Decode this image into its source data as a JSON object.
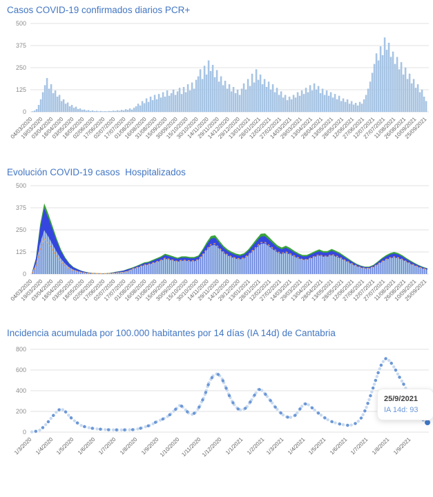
{
  "chart_data": [
    {
      "type": "bar",
      "title": "Casos COVID-19 confirmados diarios PCR+",
      "ylabel": "",
      "xlabel": "",
      "ylim": [
        0,
        500
      ],
      "yticks": [
        0,
        125,
        250,
        375,
        500
      ],
      "grid": true,
      "bar_color": "#a9c6e5",
      "bar_edge_color": "#8fb2d9",
      "x_tick_labels": [
        "04/03/2020",
        "19/03/2020",
        "03/04/2020",
        "18/04/2020",
        "03/05/2020",
        "18/05/2020",
        "02/06/2020",
        "17/06/2020",
        "02/07/2020",
        "17/07/2020",
        "01/08/2020",
        "16/08/2020",
        "31/08/2020",
        "15/09/2020",
        "30/09/2020",
        "15/10/2020",
        "30/10/2020",
        "14/11/2020",
        "29/11/2020",
        "14/12/2020",
        "29/12/2020",
        "13/01/2021",
        "28/01/2021",
        "12/02/2021",
        "27/02/2021",
        "14/03/2021",
        "29/03/2021",
        "13/04/2021",
        "28/04/2021",
        "13/05/2021",
        "28/05/2021",
        "12/06/2021",
        "27/06/2021",
        "12/07/2021",
        "27/07/2021",
        "11/08/2021",
        "26/08/2021",
        "10/09/2021",
        "25/09/2021"
      ],
      "values": [
        2,
        6,
        15,
        38,
        70,
        110,
        150,
        190,
        130,
        155,
        105,
        120,
        85,
        95,
        60,
        70,
        45,
        52,
        30,
        38,
        22,
        28,
        15,
        18,
        10,
        12,
        6,
        9,
        4,
        7,
        3,
        5,
        2,
        4,
        2,
        3,
        2,
        4,
        3,
        6,
        4,
        8,
        5,
        10,
        7,
        14,
        10,
        18,
        12,
        22,
        30,
        45,
        35,
        60,
        48,
        75,
        55,
        85,
        65,
        95,
        70,
        100,
        80,
        110,
        85,
        120,
        90,
        105,
        125,
        95,
        115,
        135,
        100,
        140,
        110,
        155,
        120,
        165,
        130,
        180,
        200,
        240,
        185,
        260,
        210,
        290,
        230,
        265,
        195,
        235,
        170,
        200,
        150,
        175,
        130,
        155,
        115,
        140,
        105,
        125,
        95,
        130,
        160,
        125,
        185,
        145,
        215,
        165,
        240,
        180,
        210,
        155,
        185,
        140,
        170,
        125,
        155,
        110,
        135,
        95,
        115,
        80,
        95,
        65,
        85,
        70,
        95,
        80,
        110,
        90,
        120,
        100,
        135,
        110,
        150,
        120,
        160,
        125,
        145,
        105,
        130,
        95,
        120,
        90,
        110,
        80,
        100,
        70,
        90,
        60,
        75,
        55,
        70,
        45,
        60,
        40,
        50,
        35,
        55,
        45,
        70,
        95,
        130,
        170,
        220,
        270,
        330,
        290,
        370,
        320,
        420,
        350,
        390,
        310,
        340,
        270,
        310,
        240,
        280,
        210,
        250,
        185,
        215,
        160,
        185,
        135,
        155,
        110,
        125,
        85,
        60
      ]
    },
    {
      "type": "area",
      "title": "Evolución COVID-19 casos  Hospitalizados",
      "ylabel": "",
      "xlabel": "",
      "ylim": [
        0,
        500
      ],
      "yticks": [
        0,
        125,
        250,
        375,
        500
      ],
      "grid": true,
      "x_tick_labels": [
        "04/03/2020",
        "19/03/2020",
        "03/04/2020",
        "18/04/2020",
        "03/05/2020",
        "18/05/2020",
        "02/06/2020",
        "17/06/2020",
        "02/07/2020",
        "17/07/2020",
        "01/08/2020",
        "16/08/2020",
        "31/08/2020",
        "15/09/2020",
        "30/09/2020",
        "15/10/2020",
        "30/10/2020",
        "14/11/2020",
        "29/11/2020",
        "14/12/2020",
        "29/12/2020",
        "13/01/2021",
        "28/01/2021",
        "12/02/2021",
        "27/02/2021",
        "14/03/2021",
        "29/03/2021",
        "13/04/2021",
        "28/04/2021",
        "13/05/2021",
        "28/05/2021",
        "12/06/2021",
        "27/06/2021",
        "12/07/2021",
        "27/07/2021",
        "11/08/2021",
        "26/08/2021",
        "10/09/2021",
        "25/09/2021"
      ],
      "series": [
        {
          "name": "green_outline",
          "color": "#3aa33a",
          "values": [
            5,
            90,
            280,
            400,
            340,
            270,
            200,
            140,
            95,
            62,
            40,
            28,
            18,
            12,
            8,
            6,
            5,
            4,
            5,
            8,
            12,
            16,
            20,
            28,
            36,
            45,
            55,
            66,
            70,
            80,
            90,
            100,
            115,
            108,
            100,
            92,
            100,
            100,
            96,
            96,
            105,
            140,
            180,
            215,
            220,
            190,
            160,
            140,
            126,
            116,
            110,
            118,
            140,
            170,
            200,
            228,
            230,
            208,
            184,
            162,
            150,
            160,
            148,
            132,
            118,
            108,
            108,
            118,
            130,
            140,
            130,
            130,
            142,
            132,
            120,
            104,
            88,
            72,
            58,
            48,
            42,
            42,
            52,
            70,
            90,
            106,
            118,
            125,
            118,
            106,
            90,
            75,
            62,
            50,
            40,
            33
          ]
        },
        {
          "name": "blue",
          "color": "#3546df",
          "values": [
            3,
            84,
            260,
            372,
            316,
            251,
            186,
            130,
            88,
            58,
            37,
            26,
            17,
            11,
            7,
            5,
            4,
            3,
            4,
            7,
            11,
            15,
            19,
            26,
            33,
            42,
            51,
            61,
            65,
            74,
            84,
            93,
            107,
            100,
            93,
            86,
            93,
            93,
            89,
            89,
            98,
            130,
            167,
            200,
            205,
            177,
            149,
            130,
            117,
            108,
            102,
            110,
            130,
            158,
            186,
            212,
            214,
            193,
            171,
            151,
            140,
            149,
            138,
            123,
            110,
            100,
            100,
            110,
            121,
            130,
            121,
            121,
            132,
            123,
            112,
            97,
            82,
            67,
            54,
            45,
            39,
            39,
            48,
            65,
            84,
            99,
            110,
            116,
            110,
            99,
            84,
            70,
            58,
            47,
            37,
            31
          ]
        },
        {
          "name": "light_blue_base",
          "color": "#a9c6e5",
          "values": [
            3,
            56,
            174,
            248,
            211,
            167,
            124,
            87,
            59,
            38,
            25,
            17,
            11,
            7,
            5,
            4,
            3,
            2,
            3,
            5,
            7,
            10,
            12,
            17,
            27,
            34,
            41,
            50,
            53,
            60,
            68,
            75,
            86,
            81,
            75,
            69,
            75,
            75,
            72,
            72,
            79,
            105,
            135,
            161,
            165,
            143,
            120,
            105,
            95,
            87,
            83,
            89,
            105,
            128,
            150,
            171,
            173,
            156,
            138,
            122,
            113,
            120,
            111,
            99,
            89,
            81,
            81,
            89,
            98,
            105,
            98,
            98,
            107,
            99,
            90,
            78,
            66,
            54,
            44,
            36,
            32,
            32,
            39,
            53,
            68,
            80,
            89,
            94,
            89,
            80,
            68,
            56,
            47,
            38,
            30,
            25
          ]
        },
        {
          "name": "orange_dashed",
          "color": "#f0a24a",
          "values": [
            3,
            45,
            140,
            200,
            170,
            135,
            100,
            70,
            48,
            31,
            20,
            14,
            9,
            6,
            4,
            3,
            3,
            2,
            3,
            4,
            6,
            8,
            10,
            14,
            28,
            35,
            43,
            51,
            55,
            62,
            70,
            78,
            90,
            84,
            78,
            72,
            78,
            78,
            75,
            75,
            82,
            109,
            140,
            168,
            172,
            148,
            125,
            109,
            98,
            90,
            86,
            92,
            109,
            133,
            156,
            178,
            179,
            162,
            144,
            126,
            117,
            125,
            115,
            103,
            93,
            82,
            82,
            92,
            101,
            109,
            101,
            101,
            111,
            103,
            94,
            81,
            69,
            57,
            46,
            37,
            33,
            33,
            41,
            55,
            70,
            83,
            92,
            98,
            92,
            83,
            70,
            59,
            48,
            39,
            31,
            26
          ]
        }
      ]
    },
    {
      "type": "scatter",
      "title": "Incidencia acumulada por 100.000 habitantes por 14 días (IA 14d) de Cantabria",
      "ylabel": "",
      "xlabel": "",
      "ylim": [
        0,
        800
      ],
      "yticks": [
        0,
        200,
        400,
        600,
        800
      ],
      "grid": true,
      "dot_color_light": "#c8daf0",
      "dot_color_dark": "#6b97d6",
      "final_dot_color": "#3a74c8",
      "x_tick_labels": [
        "1/3/2020",
        "1/4/2020",
        "1/5/2020",
        "1/6/2020",
        "1/7/2020",
        "1/8/2020",
        "1/9/2020",
        "1/10/2020",
        "1/11/2020",
        "1/12/2020",
        "1/1/2021",
        "1/2/2021",
        "1/3/2021",
        "1/4/2021",
        "1/5/2021",
        "1/6/2021",
        "1/7/2021",
        "1/8/2021",
        "1/9/2021"
      ],
      "x_tick_days": [
        0,
        31,
        61,
        92,
        122,
        153,
        184,
        214,
        245,
        275,
        306,
        337,
        365,
        396,
        426,
        457,
        487,
        518,
        549
      ],
      "total_days": 573,
      "values": [
        2,
        8,
        20,
        55,
        100,
        150,
        195,
        228,
        205,
        160,
        120,
        90,
        65,
        50,
        42,
        35,
        30,
        27,
        24,
        23,
        22,
        21,
        21,
        22,
        23,
        25,
        33,
        45,
        57,
        70,
        95,
        112,
        130,
        152,
        185,
        225,
        262,
        230,
        185,
        170,
        200,
        270,
        360,
        480,
        545,
        565,
        530,
        440,
        345,
        270,
        225,
        210,
        235,
        290,
        355,
        415,
        400,
        350,
        300,
        245,
        200,
        165,
        145,
        142,
        165,
        220,
        275,
        268,
        235,
        200,
        170,
        140,
        115,
        98,
        85,
        76,
        68,
        65,
        72,
        95,
        140,
        220,
        330,
        450,
        570,
        670,
        715,
        680,
        620,
        545,
        480,
        400,
        320,
        245,
        175,
        115,
        93
      ],
      "tooltip": {
        "date": "25/9/2021",
        "text": "IA 14d: 93",
        "value": 93
      }
    }
  ],
  "theme": {
    "title_color": "#4276c3",
    "grid_color": "#e2e2e2",
    "ytick_color": "#8c8c8c",
    "xtick_color": "#5f5f5f"
  }
}
